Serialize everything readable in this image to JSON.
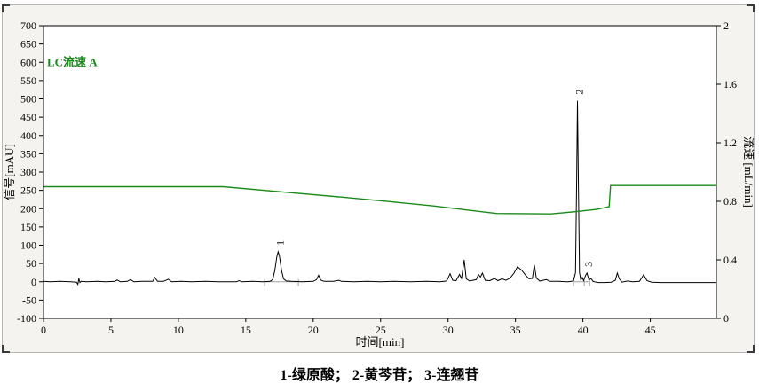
{
  "accent_colors": {
    "flow_green": "#1a8a1a",
    "trace_black": "#000000",
    "integration_gray": "#a0a0a0",
    "panel_bg": "#f4f3ef",
    "plot_bg": "#ffffff"
  },
  "legend": {
    "label": "LC流速 A"
  },
  "caption": {
    "text": "1-绿原酸； 2-黄芩苷； 3-连翘苷"
  },
  "chart_data": {
    "type": "line",
    "title": "",
    "x_axis": {
      "label": "时间[min]",
      "min": 0,
      "max": 49.9,
      "ticks": [
        0,
        5,
        10,
        15,
        20,
        25,
        30,
        35,
        40,
        45
      ]
    },
    "y_axis_left": {
      "label": "信号[mAU]",
      "min": -100,
      "max": 700,
      "ticks": [
        700,
        650,
        600,
        550,
        500,
        450,
        400,
        350,
        300,
        250,
        200,
        150,
        100,
        50,
        0,
        -50,
        -100
      ]
    },
    "y_axis_right": {
      "label": "流速 [mL/min]",
      "min": 0,
      "max": 2,
      "ticks": [
        2,
        1.6,
        1.2,
        0.8,
        0.4,
        0
      ]
    },
    "legend_position": "top-left-inside",
    "grid": false,
    "peaks": [
      {
        "id": "1",
        "compound": "绿原酸",
        "time_min": 17.4,
        "height_mAU": 82
      },
      {
        "id": "2",
        "compound": "黄芩苷",
        "time_min": 39.6,
        "height_mAU": 495
      },
      {
        "id": "3",
        "compound": "连翘苷",
        "time_min": 40.3,
        "height_mAU": 24
      }
    ],
    "integration": {
      "baseline_segments_min": [
        [
          16.4,
          18.9
        ],
        [
          39.3,
          40.5
        ]
      ],
      "tick_times_min": [
        16.4,
        18.9,
        39.3,
        40.1,
        40.5
      ]
    },
    "series": [
      {
        "name": "信号",
        "axis": "left",
        "color": "#000000",
        "points": [
          [
            0,
            1
          ],
          [
            0.5,
            0
          ],
          [
            1.2,
            1
          ],
          [
            2.0,
            0
          ],
          [
            2.45,
            -1
          ],
          [
            2.55,
            -7
          ],
          [
            2.62,
            9
          ],
          [
            2.7,
            -2
          ],
          [
            2.8,
            1
          ],
          [
            3.2,
            0
          ],
          [
            4.0,
            1
          ],
          [
            4.6,
            0
          ],
          [
            5.3,
            1
          ],
          [
            5.45,
            5
          ],
          [
            5.7,
            0
          ],
          [
            6.2,
            1
          ],
          [
            6.45,
            6
          ],
          [
            6.7,
            0
          ],
          [
            7.3,
            1
          ],
          [
            8.1,
            1
          ],
          [
            8.25,
            12
          ],
          [
            8.45,
            1
          ],
          [
            8.9,
            1
          ],
          [
            9.25,
            7
          ],
          [
            9.5,
            0
          ],
          [
            10.2,
            1
          ],
          [
            11,
            0
          ],
          [
            12,
            1
          ],
          [
            13,
            0
          ],
          [
            14.3,
            0
          ],
          [
            14.5,
            3
          ],
          [
            14.7,
            0
          ],
          [
            15.5,
            1
          ],
          [
            16.3,
            0
          ],
          [
            16.8,
            1
          ],
          [
            17.0,
            6
          ],
          [
            17.15,
            30
          ],
          [
            17.3,
            68
          ],
          [
            17.4,
            82
          ],
          [
            17.5,
            70
          ],
          [
            17.65,
            32
          ],
          [
            17.8,
            8
          ],
          [
            18.0,
            2
          ],
          [
            18.4,
            1
          ],
          [
            19.2,
            0
          ],
          [
            20.0,
            1
          ],
          [
            20.25,
            6
          ],
          [
            20.4,
            18
          ],
          [
            20.55,
            5
          ],
          [
            20.8,
            1
          ],
          [
            21.5,
            1
          ],
          [
            21.9,
            4
          ],
          [
            22.1,
            1
          ],
          [
            23,
            0
          ],
          [
            24,
            1
          ],
          [
            25,
            0
          ],
          [
            26,
            1
          ],
          [
            27.2,
            0
          ],
          [
            28.4,
            1
          ],
          [
            29.4,
            0
          ],
          [
            29.9,
            2
          ],
          [
            30.15,
            22
          ],
          [
            30.35,
            4
          ],
          [
            30.6,
            3
          ],
          [
            30.85,
            20
          ],
          [
            31.0,
            9
          ],
          [
            31.2,
            60
          ],
          [
            31.35,
            8
          ],
          [
            31.6,
            2
          ],
          [
            32.1,
            6
          ],
          [
            32.25,
            20
          ],
          [
            32.4,
            13
          ],
          [
            32.55,
            24
          ],
          [
            32.75,
            4
          ],
          [
            33.1,
            3
          ],
          [
            33.45,
            9
          ],
          [
            33.7,
            3
          ],
          [
            34.0,
            8
          ],
          [
            34.3,
            4
          ],
          [
            34.6,
            10
          ],
          [
            34.9,
            24
          ],
          [
            35.15,
            41
          ],
          [
            35.45,
            32
          ],
          [
            35.75,
            18
          ],
          [
            36.0,
            8
          ],
          [
            36.25,
            9
          ],
          [
            36.4,
            46
          ],
          [
            36.55,
            10
          ],
          [
            36.8,
            2
          ],
          [
            37.3,
            6
          ],
          [
            37.55,
            1
          ],
          [
            38.2,
            1
          ],
          [
            38.9,
            0
          ],
          [
            39.3,
            2
          ],
          [
            39.45,
            25
          ],
          [
            39.54,
            280
          ],
          [
            39.6,
            495
          ],
          [
            39.66,
            280
          ],
          [
            39.75,
            25
          ],
          [
            39.85,
            4
          ],
          [
            39.95,
            12
          ],
          [
            40.05,
            3
          ],
          [
            40.2,
            18
          ],
          [
            40.3,
            24
          ],
          [
            40.45,
            5
          ],
          [
            40.6,
            9
          ],
          [
            40.75,
            1
          ],
          [
            41.1,
            -2
          ],
          [
            41.6,
            -2
          ],
          [
            42.1,
            -1
          ],
          [
            42.4,
            4
          ],
          [
            42.55,
            24
          ],
          [
            42.7,
            8
          ],
          [
            42.9,
            -1
          ],
          [
            43.3,
            2
          ],
          [
            43.7,
            0
          ],
          [
            44.2,
            1
          ],
          [
            44.5,
            19
          ],
          [
            44.75,
            3
          ],
          [
            45.1,
            -1
          ],
          [
            45.8,
            -2
          ],
          [
            47,
            -2
          ],
          [
            48.5,
            -2
          ],
          [
            49.9,
            -2
          ]
        ]
      },
      {
        "name": "LC流速 A",
        "axis": "right",
        "color": "#1a8a1a",
        "points": [
          [
            0,
            0.9
          ],
          [
            13.3,
            0.9
          ],
          [
            18,
            0.862
          ],
          [
            22,
            0.83
          ],
          [
            26,
            0.795
          ],
          [
            29,
            0.768
          ],
          [
            31.5,
            0.74
          ],
          [
            33.6,
            0.717
          ],
          [
            37.6,
            0.714
          ],
          [
            39.5,
            0.73
          ],
          [
            41.0,
            0.745
          ],
          [
            41.95,
            0.763
          ],
          [
            42.05,
            0.908
          ],
          [
            49.9,
            0.908
          ]
        ]
      }
    ]
  }
}
